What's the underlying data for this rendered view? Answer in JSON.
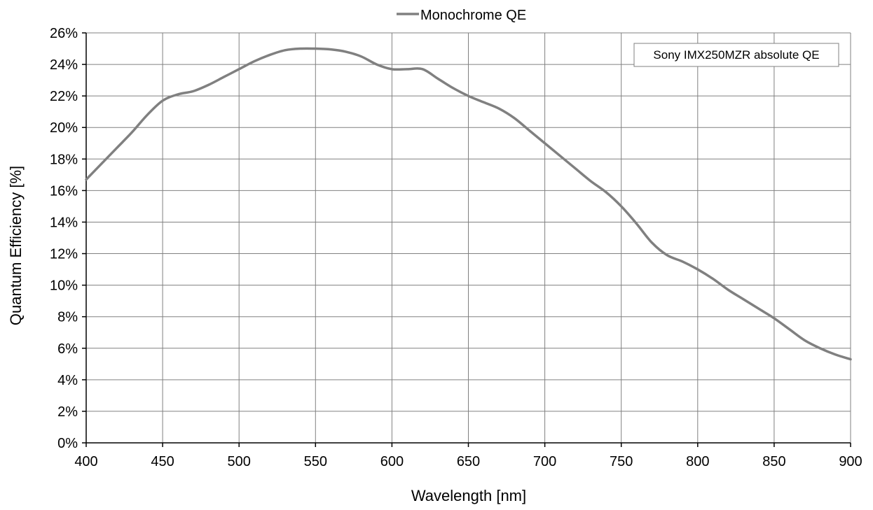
{
  "chart_data": {
    "type": "line",
    "title": "",
    "xlabel": "Wavelength [nm]",
    "ylabel": "Quantum Efficiency [%]",
    "xlim": [
      400,
      900
    ],
    "ylim": [
      0,
      26
    ],
    "x_ticks": [
      400,
      450,
      500,
      550,
      600,
      650,
      700,
      750,
      800,
      850,
      900
    ],
    "y_ticks": [
      0,
      2,
      4,
      6,
      8,
      10,
      12,
      14,
      16,
      18,
      20,
      22,
      24,
      26
    ],
    "y_tick_format": "percent",
    "grid": true,
    "legend": {
      "position": "top-center",
      "entries": [
        "Monochrome QE"
      ]
    },
    "annotation": "Sony IMX250MZR absolute QE",
    "series": [
      {
        "name": "Monochrome QE",
        "color": "#808080",
        "x": [
          400,
          410,
          420,
          430,
          440,
          450,
          460,
          470,
          480,
          490,
          500,
          510,
          520,
          530,
          540,
          550,
          560,
          570,
          580,
          590,
          600,
          610,
          620,
          630,
          640,
          650,
          660,
          670,
          680,
          690,
          700,
          710,
          720,
          730,
          740,
          750,
          760,
          770,
          780,
          790,
          800,
          810,
          820,
          830,
          840,
          850,
          860,
          870,
          880,
          890,
          900
        ],
        "y": [
          16.7,
          17.7,
          18.7,
          19.7,
          20.8,
          21.7,
          22.1,
          22.3,
          22.7,
          23.2,
          23.7,
          24.2,
          24.6,
          24.9,
          25.0,
          25.0,
          24.95,
          24.8,
          24.5,
          24.0,
          23.7,
          23.7,
          23.7,
          23.1,
          22.5,
          22.0,
          21.6,
          21.2,
          20.6,
          19.8,
          19.0,
          18.2,
          17.4,
          16.6,
          15.9,
          15.0,
          13.9,
          12.7,
          11.9,
          11.5,
          11.0,
          10.4,
          9.7,
          9.1,
          8.5,
          7.9,
          7.2,
          6.5,
          6.0,
          5.6,
          5.3
        ]
      }
    ]
  }
}
